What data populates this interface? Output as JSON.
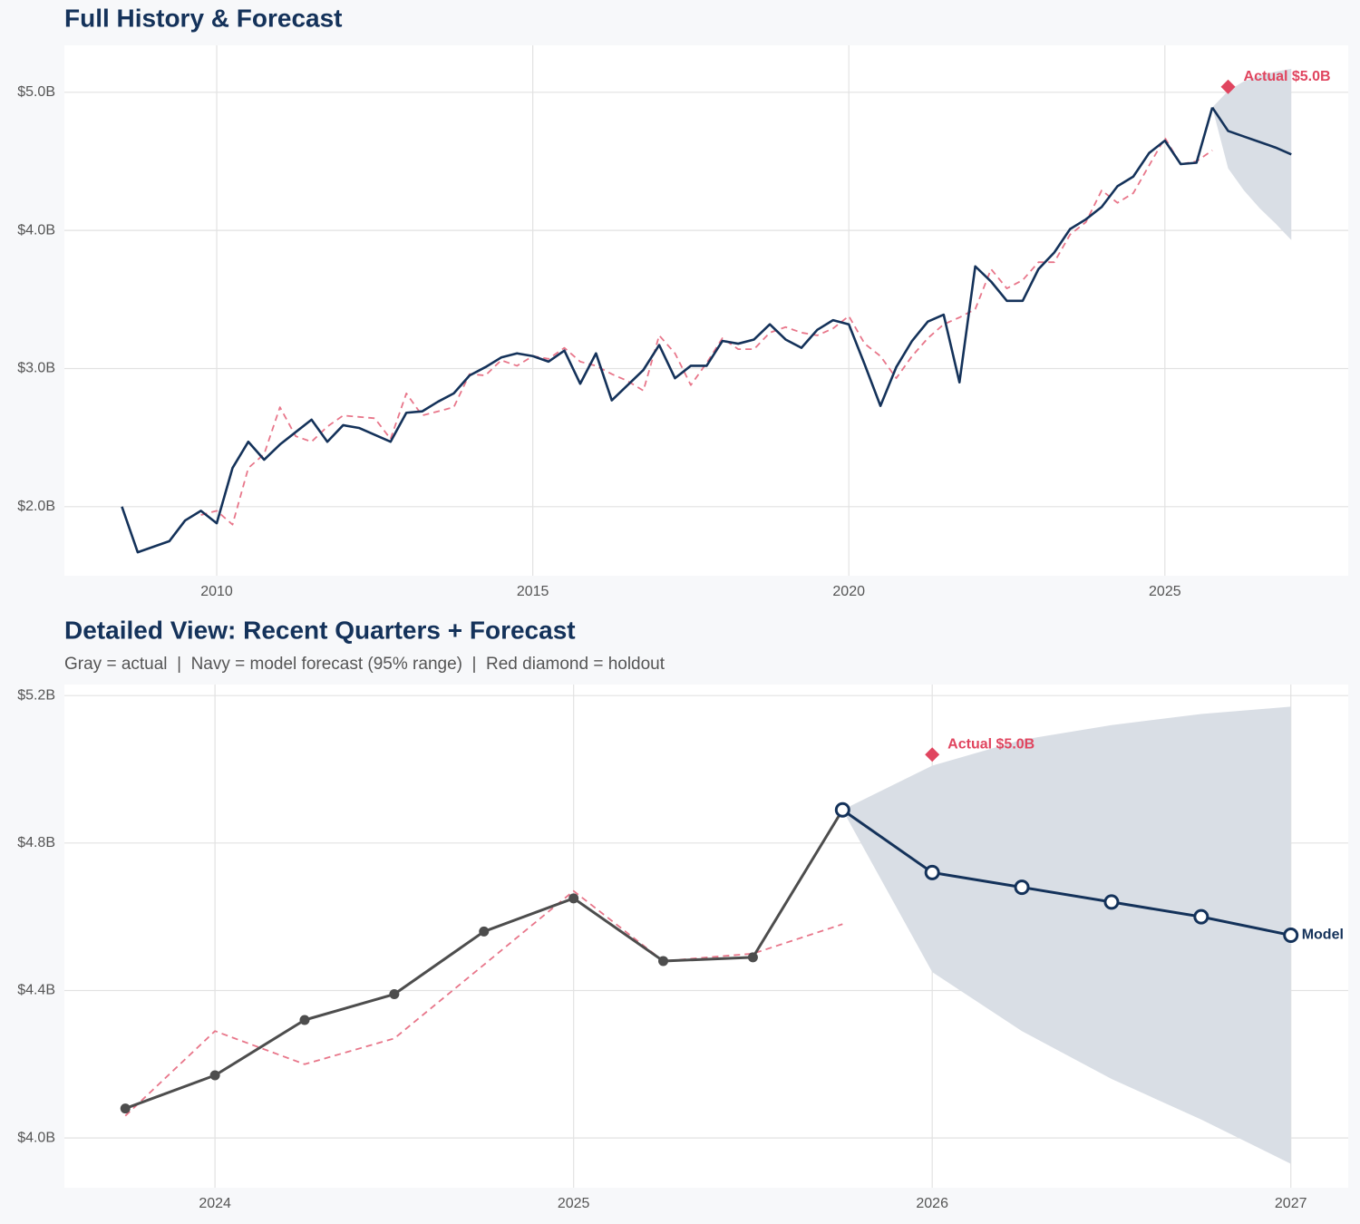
{
  "chart_data": [
    {
      "type": "line",
      "title": "Full History & Forecast",
      "xlim": [
        2007.59,
        2027.9
      ],
      "xticks": [
        2010,
        2015,
        2020,
        2025
      ],
      "ylim": [
        1.5,
        5.34
      ],
      "yticks": [
        {
          "value": 2,
          "label": "$2.0B"
        },
        {
          "value": 3,
          "label": "$3.0B"
        },
        {
          "value": 4,
          "label": "$4.0B"
        },
        {
          "value": 5,
          "label": "$5.0B"
        }
      ],
      "grid": true,
      "band": {
        "color": "#d9dee5",
        "x": [
          2025.75,
          2026,
          2026.25,
          2026.5,
          2026.75,
          2027
        ],
        "lower": [
          4.89,
          4.45,
          4.29,
          4.16,
          4.05,
          3.93
        ],
        "upper": [
          4.89,
          5.01,
          5.08,
          5.12,
          5.15,
          5.17
        ]
      },
      "series": [
        {
          "color": "#e8768a",
          "dash": true,
          "width": 1.8,
          "x": [
            2008.5,
            2008.75,
            2009,
            2009.25,
            2009.5,
            2009.75,
            2010,
            2010.25,
            2010.5,
            2010.75,
            2011,
            2011.25,
            2011.5,
            2011.75,
            2012,
            2012.25,
            2012.5,
            2012.75,
            2013,
            2013.25,
            2013.5,
            2013.75,
            2014,
            2014.25,
            2014.5,
            2014.75,
            2015,
            2015.25,
            2015.5,
            2015.75,
            2016,
            2016.25,
            2016.5,
            2016.75,
            2017,
            2017.25,
            2017.5,
            2017.75,
            2018,
            2018.25,
            2018.5,
            2018.75,
            2019,
            2019.25,
            2019.5,
            2019.75,
            2020,
            2020.25,
            2020.5,
            2020.75,
            2021,
            2021.25,
            2021.5,
            2021.75,
            2022,
            2022.25,
            2022.5,
            2022.75,
            2023,
            2023.25,
            2023.5,
            2023.75,
            2024,
            2024.25,
            2024.5,
            2024.75,
            2025,
            2025.25,
            2025.5,
            2025.75
          ],
          "values": [
            null,
            null,
            null,
            null,
            null,
            1.94,
            1.97,
            1.87,
            2.28,
            2.38,
            2.72,
            2.51,
            2.47,
            2.58,
            2.66,
            2.65,
            2.64,
            2.49,
            2.82,
            2.66,
            2.69,
            2.72,
            2.96,
            2.95,
            3.06,
            3.02,
            3.09,
            3.07,
            3.15,
            3.05,
            3.02,
            2.96,
            2.91,
            2.84,
            3.24,
            3.11,
            2.88,
            3.04,
            3.22,
            3.14,
            3.14,
            3.26,
            3.3,
            3.26,
            3.24,
            3.29,
            3.38,
            3.18,
            3.09,
            2.93,
            3.09,
            3.22,
            3.32,
            3.37,
            3.43,
            3.72,
            3.58,
            3.64,
            3.77,
            3.77,
            3.97,
            4.06,
            4.29,
            4.2,
            4.27,
            4.47,
            4.67,
            4.48,
            4.5,
            4.58
          ]
        },
        {
          "color": "#14325a",
          "width": 2.6,
          "x": [
            2008.5,
            2008.75,
            2009,
            2009.25,
            2009.5,
            2009.75,
            2010,
            2010.25,
            2010.5,
            2010.75,
            2011,
            2011.25,
            2011.5,
            2011.75,
            2012,
            2012.25,
            2012.5,
            2012.75,
            2013,
            2013.25,
            2013.5,
            2013.75,
            2014,
            2014.25,
            2014.5,
            2014.75,
            2015,
            2015.25,
            2015.5,
            2015.75,
            2016,
            2016.25,
            2016.5,
            2016.75,
            2017,
            2017.25,
            2017.5,
            2017.75,
            2018,
            2018.25,
            2018.5,
            2018.75,
            2019,
            2019.25,
            2019.5,
            2019.75,
            2020,
            2020.25,
            2020.5,
            2020.75,
            2021,
            2021.25,
            2021.5,
            2021.75,
            2022,
            2022.25,
            2022.5,
            2022.75,
            2023,
            2023.25,
            2023.5,
            2023.75,
            2024,
            2024.25,
            2024.5,
            2024.75,
            2025,
            2025.25,
            2025.5,
            2025.75
          ],
          "values": [
            2.0,
            1.67,
            1.71,
            1.75,
            1.9,
            1.97,
            1.88,
            2.28,
            2.47,
            2.34,
            2.45,
            2.54,
            2.63,
            2.47,
            2.59,
            2.57,
            2.52,
            2.47,
            2.68,
            2.69,
            2.76,
            2.82,
            2.95,
            3.01,
            3.08,
            3.11,
            3.09,
            3.05,
            3.13,
            2.89,
            3.11,
            2.77,
            2.88,
            2.99,
            3.17,
            2.93,
            3.02,
            3.02,
            3.2,
            3.18,
            3.21,
            3.32,
            3.21,
            3.15,
            3.28,
            3.35,
            3.32,
            3.03,
            2.73,
            3.01,
            3.2,
            3.34,
            3.39,
            2.9,
            3.74,
            3.63,
            3.49,
            3.49,
            3.72,
            3.84,
            4.01,
            4.08,
            4.17,
            4.32,
            4.39,
            4.56,
            4.65,
            4.48,
            4.49,
            4.89
          ]
        },
        {
          "color": "#14325a",
          "width": 2.6,
          "x": [
            2025.75,
            2026,
            2026.25,
            2026.5,
            2026.75,
            2027
          ],
          "values": [
            4.89,
            4.72,
            4.68,
            4.64,
            4.6,
            4.55
          ]
        }
      ],
      "holdout": {
        "x": 2026,
        "value": 5.04,
        "label": "Actual $5.0B",
        "color": "#e0455f"
      }
    },
    {
      "type": "line",
      "title": "Detailed View: Recent Quarters + Forecast",
      "subtitle": "Gray = actual  |  Navy = model forecast (95% range)  |  Red diamond = holdout",
      "xlim": [
        2023.58,
        2027.16
      ],
      "xticks": [
        2024,
        2025,
        2026,
        2027
      ],
      "ylim": [
        3.865,
        5.23
      ],
      "yticks": [
        {
          "value": 4.0,
          "label": "$4.0B"
        },
        {
          "value": 4.4,
          "label": "$4.4B"
        },
        {
          "value": 4.8,
          "label": "$4.8B"
        },
        {
          "value": 5.2,
          "label": "$5.2B"
        }
      ],
      "grid": true,
      "band": {
        "color": "#d9dee5",
        "x": [
          2025.75,
          2026,
          2026.25,
          2026.5,
          2026.75,
          2027
        ],
        "lower": [
          4.89,
          4.45,
          4.29,
          4.16,
          4.05,
          3.93
        ],
        "upper": [
          4.89,
          5.01,
          5.08,
          5.12,
          5.15,
          5.17
        ]
      },
      "series": [
        {
          "color": "#e8768a",
          "dash": true,
          "width": 1.8,
          "x": [
            2023.75,
            2024,
            2024.25,
            2024.5,
            2024.75,
            2025,
            2025.25,
            2025.5,
            2025.75
          ],
          "values": [
            4.06,
            4.29,
            4.2,
            4.27,
            4.47,
            4.67,
            4.48,
            4.5,
            4.58
          ]
        },
        {
          "color": "#4d4d4d",
          "width": 3,
          "markers": "filled",
          "x": [
            2023.75,
            2024,
            2024.25,
            2024.5,
            2024.75,
            2025,
            2025.25,
            2025.5,
            2025.75
          ],
          "values": [
            4.08,
            4.17,
            4.32,
            4.39,
            4.56,
            4.65,
            4.48,
            4.49,
            4.89
          ]
        },
        {
          "name": "Model",
          "color": "#14325a",
          "width": 3,
          "markers": "hollow",
          "x": [
            2025.75,
            2026,
            2026.25,
            2026.5,
            2026.75,
            2027
          ],
          "values": [
            4.89,
            4.72,
            4.68,
            4.64,
            4.6,
            4.55
          ]
        }
      ],
      "holdout": {
        "x": 2026,
        "value": 5.04,
        "label": "Actual $5.0B",
        "color": "#e0455f"
      }
    }
  ]
}
